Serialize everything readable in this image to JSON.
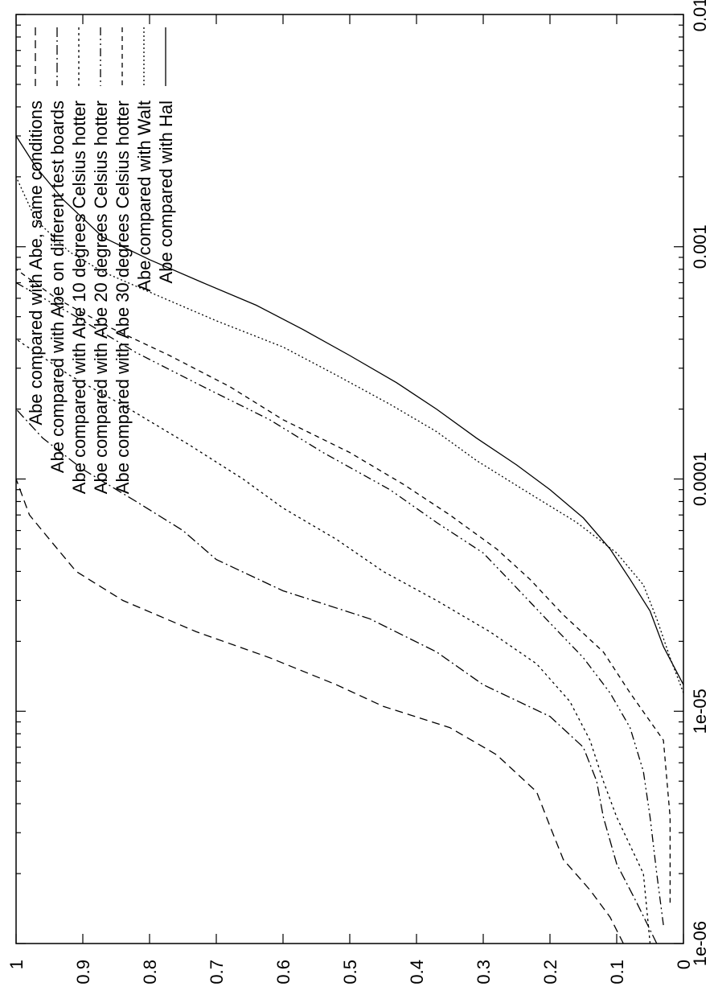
{
  "chart_data": {
    "type": "line",
    "title": "",
    "xlabel": "",
    "ylabel": "",
    "x_scale": "log",
    "xlim": [
      1e-06,
      0.01
    ],
    "ylim": [
      0,
      1
    ],
    "grid": false,
    "legend_placement": "top-right",
    "x_ticks": [
      "1e-06",
      "1e-05",
      "0.0001",
      "0.001",
      "0.01"
    ],
    "y_ticks": [
      "0",
      "0.1",
      "0.2",
      "0.3",
      "0.4",
      "0.5",
      "0.6",
      "0.7",
      "0.8",
      "0.9",
      "1"
    ],
    "series": [
      {
        "name": "Abe compared with Abe, same conditions",
        "dash": "10 6",
        "x": [
          1e-06,
          1.3e-06,
          1.7e-06,
          2.3e-06,
          3.2e-06,
          4.5e-06,
          6.5e-06,
          8.5e-06,
          1.05e-05,
          1.3e-05,
          1.7e-05,
          2.2e-05,
          3e-05,
          4e-05,
          5.5e-05,
          7e-05,
          0.0001
        ],
        "y": [
          0.09,
          0.11,
          0.14,
          0.18,
          0.2,
          0.22,
          0.28,
          0.35,
          0.45,
          0.52,
          0.62,
          0.73,
          0.84,
          0.91,
          0.95,
          0.98,
          1.0
        ]
      },
      {
        "name": "Abe compared with Abe on different test boards",
        "dash": "12 4 2 4",
        "x": [
          1e-06,
          1.5e-06,
          2.2e-06,
          3.5e-06,
          5e-06,
          7e-06,
          9.5e-06,
          1.3e-05,
          1.8e-05,
          2.5e-05,
          3.3e-05,
          4.5e-05,
          6e-05,
          8e-05,
          0.00011,
          0.00015,
          0.0002
        ],
        "y": [
          0.04,
          0.07,
          0.1,
          0.12,
          0.13,
          0.15,
          0.2,
          0.3,
          0.37,
          0.47,
          0.6,
          0.7,
          0.75,
          0.82,
          0.9,
          0.96,
          1.0
        ]
      },
      {
        "name": "Abe compared with Abe 10 degrees Celsius hotter",
        "dash": "3 4",
        "x": [
          1e-06,
          2e-06,
          3.5e-06,
          5e-06,
          7.5e-06,
          1.1e-05,
          1.6e-05,
          2.2e-05,
          3e-05,
          4e-05,
          5.5e-05,
          7.5e-05,
          0.0001,
          0.00014,
          0.0002,
          0.00028,
          0.0004
        ],
        "y": [
          0.05,
          0.06,
          0.1,
          0.12,
          0.14,
          0.17,
          0.22,
          0.29,
          0.37,
          0.45,
          0.52,
          0.6,
          0.66,
          0.74,
          0.83,
          0.92,
          1.0
        ]
      },
      {
        "name": "Abe compared with Abe 20 degrees Celsius hotter",
        "dash": "10 4 2 4 2 4",
        "x": [
          1.2e-06,
          2e-06,
          3.5e-06,
          5.5e-06,
          8.5e-06,
          1.2e-05,
          1.7e-05,
          2.4e-05,
          3.4e-05,
          4.8e-05,
          6.5e-05,
          9e-05,
          0.00013,
          0.00018,
          0.00025,
          0.00035,
          0.0005,
          0.0007
        ],
        "y": [
          0.03,
          0.04,
          0.05,
          0.06,
          0.08,
          0.11,
          0.15,
          0.2,
          0.25,
          0.3,
          0.37,
          0.44,
          0.54,
          0.62,
          0.72,
          0.82,
          0.91,
          1.0
        ]
      },
      {
        "name": "Abe compared with Abe 30 degrees Celsius hotter",
        "dash": "6 5",
        "x": [
          1.5e-06,
          3.5e-06,
          7.5e-06,
          1.2e-05,
          1.8e-05,
          2.6e-05,
          3.7e-05,
          5e-05,
          7e-05,
          9.5e-05,
          0.00013,
          0.00018,
          0.00025,
          0.00034,
          0.00045,
          0.0006,
          0.0008
        ],
        "y": [
          0.02,
          0.02,
          0.03,
          0.08,
          0.12,
          0.18,
          0.23,
          0.28,
          0.35,
          0.42,
          0.5,
          0.6,
          0.68,
          0.77,
          0.86,
          0.94,
          1.0
        ]
      },
      {
        "name": "Abe compared with Walt",
        "dash": "2 3",
        "x": [
          1.2e-05,
          1.7e-05,
          2.5e-05,
          3.5e-05,
          4.8e-05,
          6.5e-05,
          9e-05,
          0.00012,
          0.00016,
          0.00021,
          0.00028,
          0.00037,
          0.00048,
          0.00062,
          0.00078,
          0.00095,
          0.0013,
          0.002
        ],
        "y": [
          0.0,
          0.02,
          0.04,
          0.06,
          0.1,
          0.16,
          0.24,
          0.31,
          0.37,
          0.44,
          0.52,
          0.6,
          0.7,
          0.79,
          0.87,
          0.92,
          0.97,
          1.0
        ]
      },
      {
        "name": "Abe compared with Hal",
        "dash": "",
        "x": [
          1.3e-05,
          1.9e-05,
          2.7e-05,
          3.7e-05,
          5e-05,
          6.8e-05,
          9e-05,
          0.000115,
          0.00015,
          0.0002,
          0.00026,
          0.00034,
          0.00044,
          0.00056,
          0.0007,
          0.00088,
          0.0011,
          0.0016,
          0.0022,
          0.003
        ],
        "y": [
          0.0,
          0.03,
          0.05,
          0.08,
          0.11,
          0.15,
          0.2,
          0.25,
          0.31,
          0.37,
          0.43,
          0.5,
          0.57,
          0.64,
          0.72,
          0.8,
          0.87,
          0.93,
          0.97,
          1.0
        ]
      }
    ]
  }
}
